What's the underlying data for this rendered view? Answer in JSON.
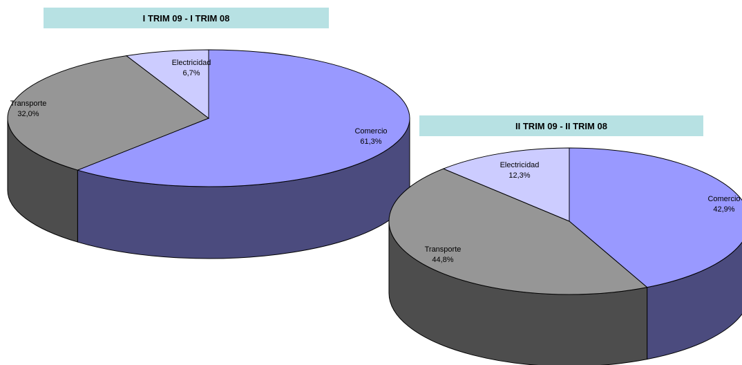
{
  "chart_data": [
    {
      "type": "pie",
      "title": "I TRIM 09 - I TRIM 08",
      "slices": [
        {
          "label": "Comercio",
          "value_label": "61,3%",
          "value": 61.3,
          "color": "#9999ff",
          "side_color": "#4b4b7e"
        },
        {
          "label": "Transporte",
          "value_label": "32,0%",
          "value": 32.0,
          "color": "#969696",
          "side_color": "#4d4d4d"
        },
        {
          "label": "Electricidad",
          "value_label": "6,7%",
          "value": 6.7,
          "color": "#ccccff",
          "side_color": "#6a6a86"
        }
      ]
    },
    {
      "type": "pie",
      "title": "II TRIM 09 - II TRIM 08",
      "slices": [
        {
          "label": "Comercio",
          "value_label": "42,9%",
          "value": 42.9,
          "color": "#9999ff",
          "side_color": "#4b4b7e"
        },
        {
          "label": "Transporte",
          "value_label": "44,8%",
          "value": 44.8,
          "color": "#969696",
          "side_color": "#4d4d4d"
        },
        {
          "label": "Electricidad",
          "value_label": "12,3%",
          "value": 12.3,
          "color": "#ccccff",
          "side_color": "#6a6a86"
        }
      ]
    }
  ]
}
